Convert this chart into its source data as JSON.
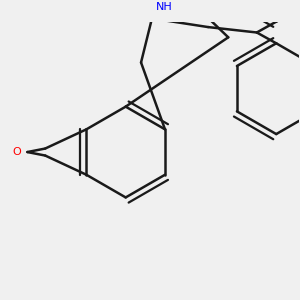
{
  "background_color": "#f0f0f0",
  "bond_color": "#1a1a1a",
  "N_color": "#0000ff",
  "O_color": "#ff0000",
  "line_width": 1.8,
  "figsize": [
    3.0,
    3.0
  ],
  "dpi": 100
}
